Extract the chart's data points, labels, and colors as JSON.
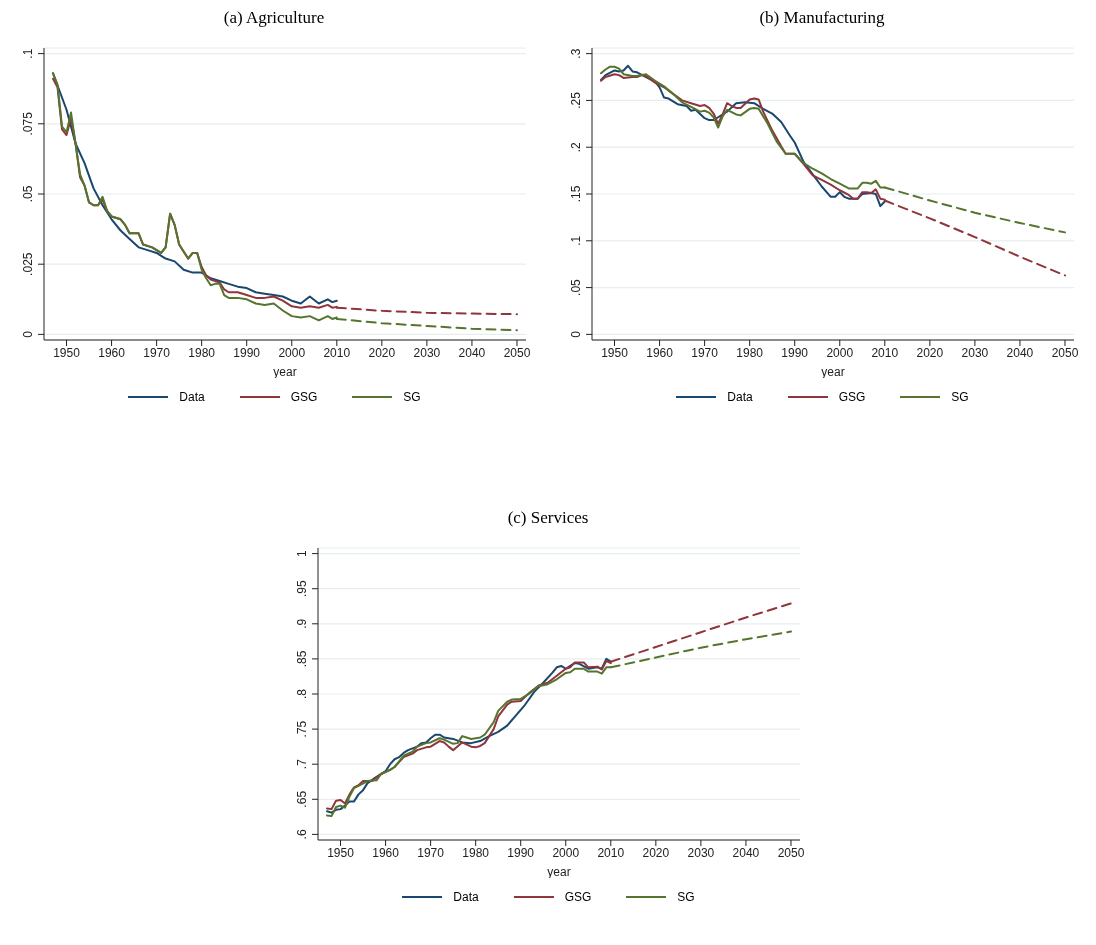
{
  "chart_data": [
    {
      "type": "line",
      "title": "(a) Agriculture",
      "xlabel": "year",
      "xlim": [
        1945,
        2052
      ],
      "xticks": [
        1950,
        1960,
        1970,
        1980,
        1990,
        2000,
        2010,
        2020,
        2030,
        2040,
        2050
      ],
      "ylim": [
        -0.002,
        0.102
      ],
      "yticks": [
        {
          "value": 0,
          "label": "0"
        },
        {
          "value": 0.025,
          "label": ".025"
        },
        {
          "value": 0.05,
          "label": ".05"
        },
        {
          "value": 0.075,
          "label": ".075"
        },
        {
          "value": 0.1,
          "label": ".1"
        }
      ],
      "grid": "y",
      "legend": "bottom",
      "marker": "none",
      "line_style": "solid",
      "series": [
        {
          "name": "Data",
          "color": "#1a476f",
          "x": [
            1947,
            1950,
            1952,
            1954,
            1956,
            1958,
            1960,
            1962,
            1964,
            1966,
            1968,
            1970,
            1972,
            1974,
            1976,
            1978,
            1980,
            1982,
            1984,
            1986,
            1988,
            1990,
            1992,
            1994,
            1996,
            1998,
            2000,
            2002,
            2004,
            2006,
            2008,
            2009,
            2010
          ],
          "values": [
            0.093,
            0.08,
            0.068,
            0.061,
            0.052,
            0.046,
            0.041,
            0.037,
            0.034,
            0.031,
            0.03,
            0.029,
            0.027,
            0.026,
            0.023,
            0.022,
            0.022,
            0.02,
            0.019,
            0.018,
            0.017,
            0.0165,
            0.015,
            0.0145,
            0.014,
            0.0135,
            0.012,
            0.011,
            0.0135,
            0.011,
            0.0125,
            0.0115,
            0.012
          ]
        },
        {
          "name": "GSG",
          "color": "#90353b",
          "x": [
            1947,
            1948,
            1949,
            1950,
            1951,
            1952,
            1953,
            1954,
            1955,
            1956,
            1957,
            1958,
            1959,
            1960,
            1962,
            1963,
            1964,
            1966,
            1967,
            1969,
            1971,
            1972,
            1973,
            1974,
            1975,
            1977,
            1978,
            1979,
            1980,
            1981,
            1982,
            1983,
            1984,
            1985,
            1986,
            1988,
            1990,
            1992,
            1994,
            1996,
            1998,
            2000,
            2002,
            2004,
            2006,
            2008,
            2009,
            2010
          ],
          "values": [
            0.091,
            0.088,
            0.073,
            0.071,
            0.077,
            0.068,
            0.056,
            0.053,
            0.047,
            0.046,
            0.046,
            0.048,
            0.044,
            0.042,
            0.041,
            0.039,
            0.036,
            0.036,
            0.032,
            0.031,
            0.029,
            0.031,
            0.043,
            0.039,
            0.032,
            0.027,
            0.029,
            0.029,
            0.024,
            0.021,
            0.0195,
            0.019,
            0.0185,
            0.016,
            0.015,
            0.015,
            0.014,
            0.013,
            0.013,
            0.0135,
            0.012,
            0.01,
            0.0095,
            0.01,
            0.0095,
            0.0105,
            0.0095,
            0.0098
          ]
        },
        {
          "name": "SG",
          "color": "#55752f",
          "x": [
            1947,
            1948,
            1949,
            1950,
            1951,
            1952,
            1953,
            1954,
            1955,
            1956,
            1957,
            1958,
            1959,
            1960,
            1962,
            1963,
            1964,
            1966,
            1967,
            1969,
            1971,
            1972,
            1973,
            1974,
            1975,
            1977,
            1978,
            1979,
            1980,
            1981,
            1982,
            1983,
            1984,
            1985,
            1986,
            1988,
            1990,
            1992,
            1994,
            1996,
            1998,
            2000,
            2002,
            2004,
            2006,
            2008,
            2009,
            2010
          ],
          "values": [
            0.093,
            0.089,
            0.074,
            0.072,
            0.079,
            0.068,
            0.057,
            0.053,
            0.047,
            0.046,
            0.046,
            0.049,
            0.044,
            0.042,
            0.041,
            0.039,
            0.036,
            0.036,
            0.032,
            0.031,
            0.029,
            0.031,
            0.043,
            0.039,
            0.032,
            0.027,
            0.029,
            0.029,
            0.023,
            0.02,
            0.0175,
            0.018,
            0.018,
            0.014,
            0.013,
            0.013,
            0.0125,
            0.011,
            0.0105,
            0.011,
            0.0085,
            0.0065,
            0.006,
            0.0065,
            0.005,
            0.0065,
            0.0055,
            0.006
          ]
        },
        {
          "color": "#90353b",
          "line_style": "dashed",
          "x": [
            2010,
            2020,
            2030,
            2040,
            2050
          ],
          "values": [
            0.0095,
            0.0084,
            0.0077,
            0.0074,
            0.0072
          ]
        },
        {
          "color": "#55752f",
          "line_style": "dashed",
          "x": [
            2010,
            2020,
            2030,
            2040,
            2050
          ],
          "values": [
            0.0055,
            0.004,
            0.003,
            0.002,
            0.0015
          ]
        }
      ]
    },
    {
      "type": "line",
      "title": "(b) Manufacturing",
      "xlabel": "year",
      "xlim": [
        1945,
        2052
      ],
      "xticks": [
        1950,
        1960,
        1970,
        1980,
        1990,
        2000,
        2010,
        2020,
        2030,
        2040,
        2050
      ],
      "ylim": [
        -0.006,
        0.306
      ],
      "yticks": [
        {
          "value": 0,
          "label": "0"
        },
        {
          "value": 0.05,
          "label": ".05"
        },
        {
          "value": 0.1,
          "label": ".1"
        },
        {
          "value": 0.15,
          "label": ".15"
        },
        {
          "value": 0.2,
          "label": ".2"
        },
        {
          "value": 0.25,
          "label": ".25"
        },
        {
          "value": 0.3,
          "label": ".3"
        }
      ],
      "grid": "y",
      "legend": "bottom",
      "marker": "none",
      "line_style": "solid",
      "series": [
        {
          "name": "Data",
          "color": "#1a476f",
          "x": [
            1947,
            1948,
            1950,
            1951,
            1952,
            1953,
            1954,
            1955,
            1957,
            1959,
            1960,
            1961,
            1962,
            1964,
            1966,
            1967,
            1968,
            1970,
            1971,
            1972,
            1973,
            1975,
            1977,
            1979,
            1981,
            1983,
            1985,
            1987,
            1989,
            1990,
            1992,
            1994,
            1996,
            1998,
            1999,
            2000,
            2001,
            2002,
            2004,
            2005,
            2007,
            2008,
            2009,
            2010
          ],
          "values": [
            0.272,
            0.277,
            0.282,
            0.281,
            0.282,
            0.287,
            0.281,
            0.28,
            0.275,
            0.27,
            0.264,
            0.253,
            0.252,
            0.246,
            0.244,
            0.239,
            0.24,
            0.231,
            0.229,
            0.229,
            0.232,
            0.238,
            0.247,
            0.248,
            0.247,
            0.241,
            0.236,
            0.227,
            0.212,
            0.205,
            0.184,
            0.171,
            0.158,
            0.147,
            0.147,
            0.152,
            0.147,
            0.145,
            0.145,
            0.15,
            0.151,
            0.15,
            0.137,
            0.142
          ]
        },
        {
          "name": "GSG",
          "color": "#90353b",
          "x": [
            1947,
            1948,
            1950,
            1951,
            1952,
            1954,
            1955,
            1956,
            1957,
            1959,
            1961,
            1963,
            1965,
            1967,
            1969,
            1970,
            1971,
            1972,
            1973,
            1974,
            1975,
            1976,
            1977,
            1978,
            1980,
            1981,
            1982,
            1983,
            1985,
            1987,
            1988,
            1990,
            1992,
            1994,
            1996,
            1998,
            2000,
            2002,
            2003,
            2004,
            2005,
            2006,
            2007,
            2008,
            2009,
            2010
          ],
          "values": [
            0.271,
            0.275,
            0.278,
            0.277,
            0.274,
            0.275,
            0.275,
            0.277,
            0.276,
            0.269,
            0.264,
            0.257,
            0.25,
            0.247,
            0.244,
            0.245,
            0.242,
            0.236,
            0.225,
            0.235,
            0.247,
            0.244,
            0.242,
            0.242,
            0.251,
            0.252,
            0.251,
            0.238,
            0.218,
            0.201,
            0.193,
            0.193,
            0.182,
            0.17,
            0.165,
            0.16,
            0.154,
            0.149,
            0.145,
            0.145,
            0.152,
            0.152,
            0.151,
            0.155,
            0.145,
            0.144
          ]
        },
        {
          "name": "SG",
          "color": "#55752f",
          "x": [
            1947,
            1948,
            1949,
            1950,
            1951,
            1952,
            1954,
            1955,
            1957,
            1959,
            1961,
            1963,
            1965,
            1967,
            1969,
            1970,
            1971,
            1972,
            1973,
            1974,
            1975,
            1977,
            1978,
            1980,
            1981,
            1982,
            1984,
            1986,
            1988,
            1990,
            1992,
            1994,
            1996,
            1998,
            2000,
            2002,
            2004,
            2005,
            2006,
            2007,
            2008,
            2009,
            2010
          ],
          "values": [
            0.279,
            0.283,
            0.286,
            0.286,
            0.284,
            0.278,
            0.276,
            0.276,
            0.278,
            0.271,
            0.265,
            0.257,
            0.248,
            0.243,
            0.238,
            0.239,
            0.237,
            0.232,
            0.221,
            0.233,
            0.24,
            0.235,
            0.234,
            0.241,
            0.242,
            0.241,
            0.225,
            0.206,
            0.193,
            0.193,
            0.183,
            0.177,
            0.172,
            0.166,
            0.161,
            0.156,
            0.156,
            0.162,
            0.162,
            0.161,
            0.164,
            0.157,
            0.157
          ]
        },
        {
          "color": "#90353b",
          "line_style": "dashed",
          "x": [
            2010,
            2020,
            2030,
            2040,
            2050
          ],
          "values": [
            0.143,
            0.124,
            0.104,
            0.083,
            0.063
          ]
        },
        {
          "color": "#55752f",
          "line_style": "dashed",
          "x": [
            2010,
            2020,
            2030,
            2040,
            2050
          ],
          "values": [
            0.157,
            0.143,
            0.13,
            0.119,
            0.109
          ]
        }
      ]
    },
    {
      "type": "line",
      "title": "(c) Services",
      "xlabel": "year",
      "xlim": [
        1945,
        2052
      ],
      "xticks": [
        1950,
        1960,
        1970,
        1980,
        1990,
        2000,
        2010,
        2020,
        2030,
        2040,
        2050
      ],
      "ylim": [
        0.592,
        1.008
      ],
      "yticks": [
        {
          "value": 0.6,
          "label": ".6"
        },
        {
          "value": 0.65,
          "label": ".65"
        },
        {
          "value": 0.7,
          "label": ".7"
        },
        {
          "value": 0.75,
          "label": ".75"
        },
        {
          "value": 0.8,
          "label": ".8"
        },
        {
          "value": 0.85,
          "label": ".85"
        },
        {
          "value": 0.9,
          "label": ".9"
        },
        {
          "value": 0.95,
          "label": ".95"
        },
        {
          "value": 1,
          "label": "1"
        }
      ],
      "grid": "y",
      "legend": "bottom",
      "marker": "none",
      "line_style": "solid",
      "series": [
        {
          "name": "Data",
          "color": "#1a476f",
          "x": [
            1947,
            1948,
            1949,
            1950,
            1951,
            1952,
            1953,
            1954,
            1955,
            1956,
            1958,
            1960,
            1961,
            1962,
            1963,
            1964,
            1965,
            1967,
            1968,
            1969,
            1970,
            1971,
            1972,
            1973,
            1975,
            1977,
            1979,
            1981,
            1983,
            1985,
            1987,
            1989,
            1991,
            1993,
            1995,
            1997,
            1998,
            1999,
            2000,
            2001,
            2002,
            2003,
            2005,
            2007,
            2008,
            2009,
            2010
          ],
          "values": [
            0.633,
            0.631,
            0.635,
            0.636,
            0.641,
            0.647,
            0.647,
            0.657,
            0.663,
            0.673,
            0.682,
            0.69,
            0.7,
            0.707,
            0.71,
            0.716,
            0.72,
            0.725,
            0.73,
            0.731,
            0.737,
            0.742,
            0.742,
            0.738,
            0.736,
            0.731,
            0.73,
            0.733,
            0.74,
            0.746,
            0.755,
            0.77,
            0.785,
            0.803,
            0.816,
            0.83,
            0.838,
            0.84,
            0.836,
            0.84,
            0.844,
            0.843,
            0.836,
            0.838,
            0.836,
            0.85,
            0.846
          ]
        },
        {
          "name": "GSG",
          "color": "#90353b",
          "x": [
            1947,
            1948,
            1949,
            1950,
            1951,
            1952,
            1953,
            1954,
            1955,
            1957,
            1959,
            1961,
            1962,
            1964,
            1966,
            1967,
            1969,
            1970,
            1972,
            1973,
            1974,
            1975,
            1977,
            1979,
            1980,
            1981,
            1982,
            1984,
            1985,
            1987,
            1988,
            1990,
            1992,
            1994,
            1996,
            1998,
            2000,
            2001,
            2002,
            2004,
            2005,
            2007,
            2008,
            2009,
            2010
          ],
          "values": [
            0.637,
            0.636,
            0.648,
            0.649,
            0.644,
            0.657,
            0.667,
            0.67,
            0.676,
            0.676,
            0.686,
            0.692,
            0.696,
            0.71,
            0.715,
            0.72,
            0.724,
            0.725,
            0.733,
            0.731,
            0.725,
            0.72,
            0.731,
            0.725,
            0.724,
            0.726,
            0.73,
            0.75,
            0.768,
            0.785,
            0.789,
            0.79,
            0.802,
            0.812,
            0.816,
            0.826,
            0.836,
            0.838,
            0.845,
            0.845,
            0.838,
            0.839,
            0.835,
            0.847,
            0.844
          ]
        },
        {
          "name": "SG",
          "color": "#55752f",
          "x": [
            1947,
            1948,
            1949,
            1950,
            1951,
            1952,
            1953,
            1954,
            1956,
            1958,
            1959,
            1961,
            1962,
            1964,
            1966,
            1967,
            1969,
            1970,
            1972,
            1973,
            1975,
            1976,
            1977,
            1978,
            1979,
            1981,
            1982,
            1984,
            1985,
            1987,
            1988,
            1990,
            1992,
            1994,
            1996,
            1998,
            2000,
            2001,
            2002,
            2004,
            2005,
            2007,
            2008,
            2009,
            2010
          ],
          "values": [
            0.627,
            0.626,
            0.639,
            0.641,
            0.638,
            0.654,
            0.666,
            0.669,
            0.676,
            0.677,
            0.686,
            0.692,
            0.696,
            0.712,
            0.718,
            0.725,
            0.73,
            0.731,
            0.737,
            0.735,
            0.729,
            0.73,
            0.74,
            0.738,
            0.736,
            0.738,
            0.742,
            0.76,
            0.776,
            0.789,
            0.792,
            0.793,
            0.801,
            0.811,
            0.814,
            0.821,
            0.83,
            0.831,
            0.836,
            0.836,
            0.832,
            0.832,
            0.829,
            0.838,
            0.838
          ]
        },
        {
          "color": "#90353b",
          "line_style": "dashed",
          "x": [
            2010,
            2020,
            2030,
            2040,
            2050
          ],
          "values": [
            0.846,
            0.867,
            0.888,
            0.909,
            0.929
          ]
        },
        {
          "color": "#55752f",
          "line_style": "dashed",
          "x": [
            2010,
            2020,
            2030,
            2040,
            2050
          ],
          "values": [
            0.838,
            0.852,
            0.866,
            0.878,
            0.889
          ]
        }
      ]
    }
  ]
}
